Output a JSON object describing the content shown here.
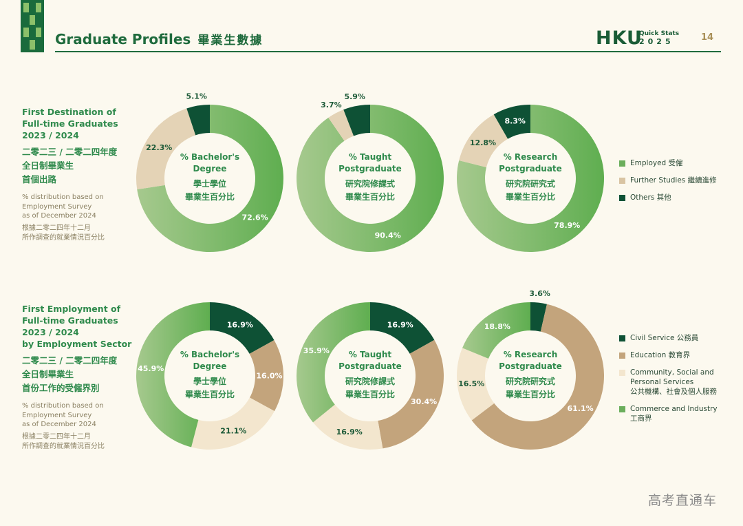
{
  "header": {
    "title": "Graduate Profiles",
    "title_zh": "畢業生數據",
    "brand": "HKU",
    "quick_stats": "Quick Stats",
    "year": "2025",
    "page_number": "14"
  },
  "sections": [
    {
      "heading": [
        "First Destination of",
        "Full-time Graduates",
        "2023 / 2024"
      ],
      "heading_zh": [
        "二零二三 / 二零二四年度",
        "全日制畢業生",
        "首個出路"
      ],
      "note": [
        "% distribution based on",
        "Employment Survey",
        "as of December 2024"
      ],
      "note_zh": [
        "根據二零二四年十二月",
        "所作調查的就業情況百分比"
      ],
      "legend": [
        {
          "label": "Employed 受僱",
          "color": "#6BAE5C"
        },
        {
          "label": "Further Studies 繼續進修",
          "color": "#D9C4A3"
        },
        {
          "label": "Others 其他",
          "color": "#0E5135"
        }
      ]
    },
    {
      "heading": [
        "First Employment of",
        "Full-time Graduates",
        "2023 / 2024",
        "by Employment Sector"
      ],
      "heading_zh": [
        "二零二三 / 二零二四年度",
        "全日制畢業生",
        "首份工作的受僱界別"
      ],
      "note": [
        "% distribution based on",
        "Employment Survey",
        "as of December 2024"
      ],
      "note_zh": [
        "根據二零二四年十二月",
        "所作調查的就業情況百分比"
      ],
      "legend": [
        {
          "label": "Civil Service 公務員",
          "color": "#0E5135"
        },
        {
          "label": "Education 教育界",
          "color": "#C3A47C"
        },
        {
          "label": "Community, Social and|Personal Services|公共機構、社會及個人服務",
          "color": "#F3E6CE"
        },
        {
          "label": "Commerce and Industry|工商界",
          "color": "#6BAE5C"
        }
      ]
    }
  ],
  "chart_data": [
    {
      "type": "pie",
      "center_text": [
        "% Bachelor's",
        "Degree",
        "學士學位",
        "畢業生百分比"
      ],
      "categories": [
        "Employed",
        "Further Studies",
        "Others"
      ],
      "values": [
        72.6,
        22.3,
        5.1
      ],
      "labels": [
        "72.6%",
        "22.3%",
        "5.1%"
      ],
      "colors": [
        "#6BAE5C",
        "#E4D3B6",
        "#0E5135"
      ]
    },
    {
      "type": "pie",
      "center_text": [
        "% Taught",
        "Postgraduate",
        "研究院修課式",
        "畢業生百分比"
      ],
      "categories": [
        "Employed",
        "Further Studies",
        "Others"
      ],
      "values": [
        90.4,
        3.7,
        5.9
      ],
      "labels": [
        "90.4%",
        "3.7%",
        "5.9%"
      ],
      "colors": [
        "#6BAE5C",
        "#E4D3B6",
        "#0E5135"
      ]
    },
    {
      "type": "pie",
      "center_text": [
        "% Research",
        "Postgraduate",
        "研究院研究式",
        "畢業生百分比"
      ],
      "categories": [
        "Employed",
        "Further Studies",
        "Others"
      ],
      "values": [
        78.9,
        12.8,
        8.3
      ],
      "labels": [
        "78.9%",
        "12.8%",
        "8.3%"
      ],
      "colors": [
        "#6BAE5C",
        "#E4D3B6",
        "#0E5135"
      ]
    },
    {
      "type": "pie",
      "center_text": [
        "% Bachelor's",
        "Degree",
        "學士學位",
        "畢業生百分比"
      ],
      "categories": [
        "Civil Service",
        "Education",
        "Community, Social and Personal Services",
        "Commerce and Industry"
      ],
      "values": [
        16.9,
        16.0,
        21.1,
        45.9
      ],
      "labels": [
        "16.9%",
        "16.0%",
        "21.1%",
        "45.9%"
      ],
      "colors": [
        "#0E5135",
        "#C3A47C",
        "#F3E6CE",
        "#6BAE5C"
      ]
    },
    {
      "type": "pie",
      "center_text": [
        "% Taught",
        "Postgraduate",
        "研究院修課式",
        "畢業生百分比"
      ],
      "categories": [
        "Civil Service",
        "Education",
        "Community, Social and Personal Services",
        "Commerce and Industry"
      ],
      "values": [
        16.9,
        30.4,
        16.9,
        35.9
      ],
      "labels": [
        "16.9%",
        "30.4%",
        "16.9%",
        "35.9%"
      ],
      "colors": [
        "#0E5135",
        "#C3A47C",
        "#F3E6CE",
        "#6BAE5C"
      ]
    },
    {
      "type": "pie",
      "center_text": [
        "% Research",
        "Postgraduate",
        "研究院研究式",
        "畢業生百分比"
      ],
      "categories": [
        "Civil Service",
        "Education",
        "Community, Social and Personal Services",
        "Commerce and Industry"
      ],
      "values": [
        3.6,
        61.1,
        16.5,
        18.8
      ],
      "labels": [
        "3.6%",
        "61.1%",
        "16.5%",
        "18.8%"
      ],
      "colors": [
        "#0E5135",
        "#C3A47C",
        "#F3E6CE",
        "#6BAE5C"
      ]
    }
  ],
  "watermark": "高考直通车"
}
